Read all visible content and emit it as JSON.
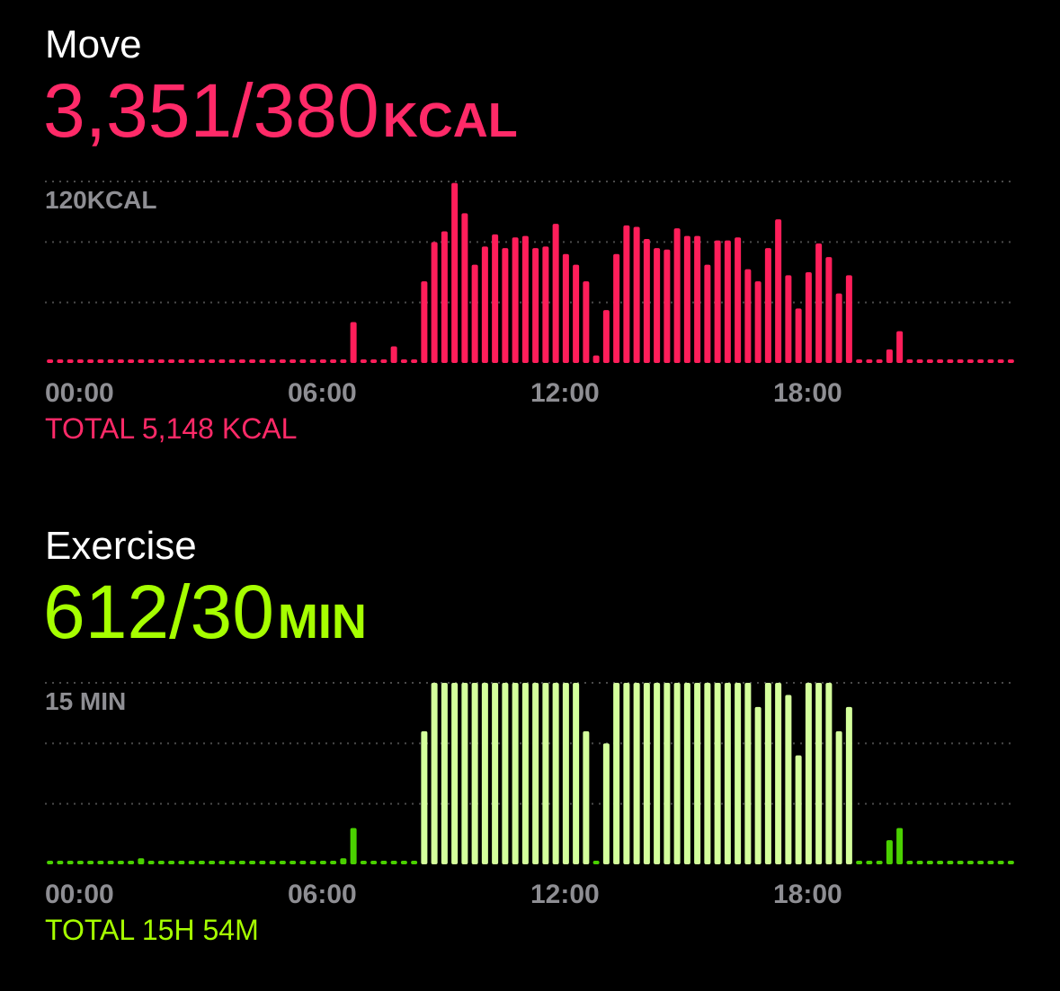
{
  "chart_data": [
    {
      "type": "bar",
      "title": "Move",
      "summary": "3,351/380",
      "summary_unit": "KCAL",
      "footer": "TOTAL 5,148 KCAL",
      "color": "#ff1e5a",
      "accent": "#ff2a68",
      "ylim": [
        0,
        120
      ],
      "yticks": [
        {
          "value": 120,
          "label": "120KCAL"
        }
      ],
      "grid_values": [
        40,
        80,
        120
      ],
      "xlim": [
        0,
        24
      ],
      "xticks": [
        {
          "value": 0,
          "label": "00:00"
        },
        {
          "value": 6,
          "label": "06:00"
        },
        {
          "value": 12,
          "label": "12:00"
        },
        {
          "value": 18,
          "label": "18:00"
        }
      ],
      "x": [
        0,
        0.25,
        0.5,
        0.75,
        1,
        1.25,
        1.5,
        1.75,
        2,
        2.25,
        2.5,
        2.75,
        3,
        3.25,
        3.5,
        3.75,
        4,
        4.25,
        4.5,
        4.75,
        5,
        5.25,
        5.5,
        5.75,
        6,
        6.25,
        6.5,
        6.75,
        7,
        7.25,
        7.5,
        7.75,
        8,
        8.25,
        8.5,
        8.75,
        9,
        9.25,
        9.5,
        9.75,
        10,
        10.25,
        10.5,
        10.75,
        11,
        11.25,
        11.5,
        11.75,
        12,
        12.25,
        12.5,
        12.75,
        13,
        13.25,
        13.5,
        13.75,
        14,
        14.25,
        14.5,
        14.75,
        15,
        15.25,
        15.5,
        15.75,
        16,
        16.25,
        16.5,
        16.75,
        17,
        17.25,
        17.5,
        17.75,
        18,
        18.25,
        18.5,
        18.75,
        19,
        19.25,
        19.5,
        19.75,
        20,
        20.25,
        20.5,
        20.75,
        21,
        21.25,
        21.5,
        21.75,
        22,
        22.25,
        22.5,
        22.75,
        23,
        23.25,
        23.5,
        23.75
      ],
      "values": [
        0,
        0,
        0,
        0,
        0,
        0,
        0,
        0,
        0,
        0,
        0,
        0,
        0,
        0,
        0,
        0,
        0,
        0,
        0,
        0,
        0,
        0,
        0,
        0,
        0,
        0,
        0,
        0,
        0,
        0,
        27,
        0,
        0,
        0,
        11,
        2,
        0,
        54,
        80,
        87,
        119,
        99,
        65,
        77,
        85,
        76,
        83,
        84,
        76,
        77,
        92,
        72,
        65,
        54,
        5,
        35,
        72,
        91,
        90,
        82,
        76,
        75,
        89,
        84,
        84,
        65,
        81,
        81,
        83,
        62,
        54,
        76,
        95,
        58,
        36,
        60,
        79,
        70,
        46,
        58,
        0,
        0,
        0,
        9,
        21,
        0,
        0,
        0,
        2,
        0,
        0,
        0,
        0,
        0,
        0,
        0
      ]
    },
    {
      "type": "bar",
      "title": "Exercise",
      "summary": "612/30",
      "summary_unit": "MIN",
      "footer": "TOTAL 15H 54M",
      "color": "#4ad000",
      "accent": "#a6ff00",
      "ylim": [
        0,
        15
      ],
      "yticks": [
        {
          "value": 15,
          "label": "15 MIN"
        }
      ],
      "grid_values": [
        5,
        10,
        15
      ],
      "xlim": [
        0,
        24
      ],
      "xticks": [
        {
          "value": 0,
          "label": "00:00"
        },
        {
          "value": 6,
          "label": "06:00"
        },
        {
          "value": 12,
          "label": "12:00"
        },
        {
          "value": 18,
          "label": "18:00"
        }
      ],
      "x": [
        0,
        0.25,
        0.5,
        0.75,
        1,
        1.25,
        1.5,
        1.75,
        2,
        2.25,
        2.5,
        2.75,
        3,
        3.25,
        3.5,
        3.75,
        4,
        4.25,
        4.5,
        4.75,
        5,
        5.25,
        5.5,
        5.75,
        6,
        6.25,
        6.5,
        6.75,
        7,
        7.25,
        7.5,
        7.75,
        8,
        8.25,
        8.5,
        8.75,
        9,
        9.25,
        9.5,
        9.75,
        10,
        10.25,
        10.5,
        10.75,
        11,
        11.25,
        11.5,
        11.75,
        12,
        12.25,
        12.5,
        12.75,
        13,
        13.25,
        13.5,
        13.75,
        14,
        14.25,
        14.5,
        14.75,
        15,
        15.25,
        15.5,
        15.75,
        16,
        16.25,
        16.5,
        16.75,
        17,
        17.25,
        17.5,
        17.75,
        18,
        18.25,
        18.5,
        18.75,
        19,
        19.25,
        19.5,
        19.75,
        20,
        20.25,
        20.5,
        20.75,
        21,
        21.25,
        21.5,
        21.75,
        22,
        22.25,
        22.5,
        22.75,
        23,
        23.25,
        23.5,
        23.75
      ],
      "values": [
        0,
        0,
        0,
        0,
        0,
        0,
        0,
        0,
        0,
        0.5,
        0,
        0,
        0,
        0,
        0,
        0,
        0,
        0,
        0,
        0,
        0,
        0,
        0,
        0,
        0,
        0,
        0,
        0,
        0,
        0.5,
        3,
        0,
        0,
        0,
        0,
        0,
        0,
        11,
        15,
        15,
        15,
        15,
        15,
        15,
        15,
        15,
        15,
        15,
        15,
        15,
        15,
        15,
        15,
        11,
        0,
        10,
        15,
        15,
        15,
        15,
        15,
        15,
        15,
        15,
        15,
        15,
        15,
        15,
        15,
        15,
        13,
        15,
        15,
        14,
        9,
        15,
        15,
        15,
        11,
        13,
        0,
        0,
        0,
        2,
        3,
        0,
        0,
        0,
        0,
        0,
        0,
        0,
        0,
        0,
        0,
        0
      ],
      "colors": [
        "#4ad000",
        "#4ad000",
        "#4ad000",
        "#4ad000",
        "#4ad000",
        "#4ad000",
        "#4ad000",
        "#4ad000",
        "#4ad000",
        "#4ad000",
        "#4ad000",
        "#4ad000",
        "#4ad000",
        "#4ad000",
        "#4ad000",
        "#4ad000",
        "#4ad000",
        "#4ad000",
        "#4ad000",
        "#4ad000",
        "#4ad000",
        "#4ad000",
        "#4ad000",
        "#4ad000",
        "#4ad000",
        "#4ad000",
        "#4ad000",
        "#4ad000",
        "#4ad000",
        "#4ad000",
        "#4ad000",
        "#4ad000",
        "#4ad000",
        "#4ad000",
        "#4ad000",
        "#4ad000",
        "#4ad000",
        "#d4ff9c",
        "#d4ff9c",
        "#d4ff9c",
        "#d4ff9c",
        "#d4ff9c",
        "#d4ff9c",
        "#d4ff9c",
        "#d4ff9c",
        "#d4ff9c",
        "#d4ff9c",
        "#d4ff9c",
        "#d4ff9c",
        "#d4ff9c",
        "#d4ff9c",
        "#d4ff9c",
        "#d4ff9c",
        "#d4ff9c",
        "#4ad000",
        "#d4ff9c",
        "#d4ff9c",
        "#d4ff9c",
        "#d4ff9c",
        "#d4ff9c",
        "#d4ff9c",
        "#d4ff9c",
        "#d4ff9c",
        "#d4ff9c",
        "#d4ff9c",
        "#d4ff9c",
        "#d4ff9c",
        "#d4ff9c",
        "#d4ff9c",
        "#d4ff9c",
        "#d4ff9c",
        "#d4ff9c",
        "#d4ff9c",
        "#d4ff9c",
        "#d4ff9c",
        "#d4ff9c",
        "#d4ff9c",
        "#d4ff9c",
        "#d4ff9c",
        "#d4ff9c",
        "#4ad000",
        "#4ad000",
        "#4ad000",
        "#4ad000",
        "#4ad000",
        "#4ad000",
        "#4ad000",
        "#4ad000",
        "#4ad000",
        "#4ad000",
        "#4ad000",
        "#4ad000",
        "#4ad000",
        "#4ad000",
        "#4ad000",
        "#4ad000",
        "#4ad000"
      ]
    }
  ]
}
